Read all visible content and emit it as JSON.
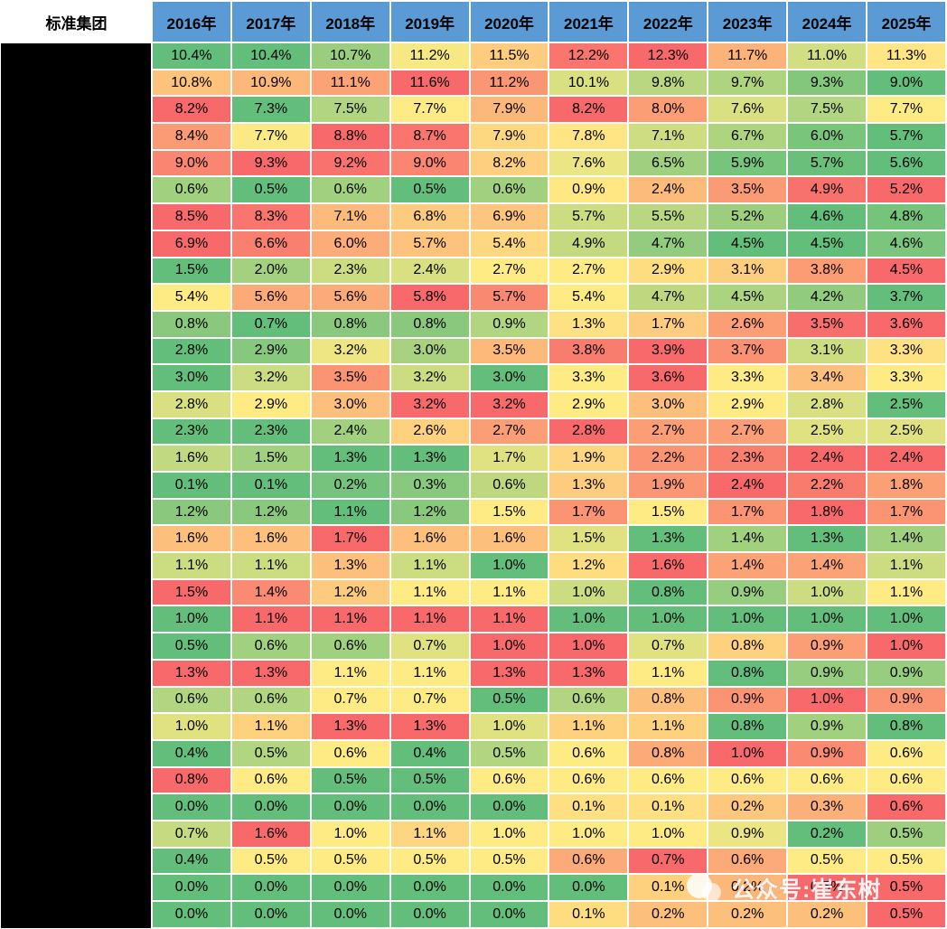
{
  "header": {
    "corner_label": "标准集团"
  },
  "watermark": {
    "text": "公众号:崔东树"
  },
  "colors": {
    "header_bg": "#5B9BD5",
    "header_text": "#000000",
    "grid": "#FFFFFF",
    "redacted_column_bg": "#000000",
    "scale_low_green": "#63BE7B",
    "scale_mid_yellow": "#FFEB84",
    "scale_high_red": "#F8696B"
  },
  "chart_data": {
    "type": "heatmap",
    "title": "标准集团",
    "unit": "%",
    "columns": [
      "2016年",
      "2017年",
      "2018年",
      "2019年",
      "2020年",
      "2021年",
      "2022年",
      "2023年",
      "2024年",
      "2025年"
    ],
    "row_labels_hidden": true,
    "rows": [
      [
        10.4,
        10.4,
        10.7,
        11.2,
        11.5,
        12.2,
        12.3,
        11.7,
        11.0,
        11.3
      ],
      [
        10.8,
        10.9,
        11.1,
        11.6,
        11.2,
        10.1,
        9.8,
        9.7,
        9.3,
        9.0
      ],
      [
        8.2,
        7.3,
        7.5,
        7.7,
        7.9,
        8.2,
        8.0,
        7.6,
        7.5,
        7.7
      ],
      [
        8.4,
        7.7,
        8.8,
        8.7,
        7.9,
        7.8,
        7.1,
        6.7,
        6.0,
        5.7
      ],
      [
        9.0,
        9.3,
        9.2,
        9.0,
        8.2,
        7.6,
        6.5,
        5.9,
        5.7,
        5.6
      ],
      [
        0.6,
        0.5,
        0.6,
        0.5,
        0.6,
        0.9,
        2.4,
        3.5,
        4.9,
        5.2
      ],
      [
        8.5,
        8.3,
        7.1,
        6.8,
        6.9,
        5.7,
        5.5,
        5.2,
        4.6,
        4.8
      ],
      [
        6.9,
        6.6,
        6.0,
        5.7,
        5.4,
        4.9,
        4.7,
        4.5,
        4.5,
        4.6
      ],
      [
        1.5,
        2.0,
        2.3,
        2.4,
        2.7,
        2.7,
        2.9,
        3.1,
        3.8,
        4.5
      ],
      [
        5.4,
        5.6,
        5.6,
        5.8,
        5.7,
        5.4,
        4.7,
        4.5,
        4.2,
        3.7
      ],
      [
        0.8,
        0.7,
        0.8,
        0.8,
        0.9,
        1.3,
        1.7,
        2.6,
        3.5,
        3.6
      ],
      [
        2.8,
        2.9,
        3.2,
        3.0,
        3.5,
        3.8,
        3.9,
        3.7,
        3.1,
        3.3
      ],
      [
        3.0,
        3.2,
        3.5,
        3.2,
        3.0,
        3.3,
        3.6,
        3.3,
        3.4,
        3.3
      ],
      [
        2.8,
        2.9,
        3.0,
        3.2,
        3.2,
        2.9,
        3.0,
        2.9,
        2.8,
        2.5
      ],
      [
        2.3,
        2.3,
        2.4,
        2.6,
        2.7,
        2.8,
        2.7,
        2.7,
        2.5,
        2.5
      ],
      [
        1.6,
        1.5,
        1.3,
        1.3,
        1.7,
        1.9,
        2.2,
        2.3,
        2.4,
        2.4
      ],
      [
        0.1,
        0.1,
        0.2,
        0.3,
        0.6,
        1.3,
        1.9,
        2.4,
        2.2,
        1.8
      ],
      [
        1.2,
        1.2,
        1.1,
        1.2,
        1.5,
        1.7,
        1.5,
        1.7,
        1.8,
        1.7
      ],
      [
        1.6,
        1.6,
        1.7,
        1.6,
        1.6,
        1.5,
        1.3,
        1.4,
        1.3,
        1.4
      ],
      [
        1.1,
        1.1,
        1.3,
        1.1,
        1.0,
        1.2,
        1.6,
        1.4,
        1.4,
        1.1
      ],
      [
        1.5,
        1.4,
        1.2,
        1.1,
        1.1,
        1.0,
        0.8,
        0.9,
        1.0,
        1.1
      ],
      [
        1.0,
        1.1,
        1.1,
        1.1,
        1.1,
        1.0,
        1.0,
        1.0,
        1.0,
        1.0
      ],
      [
        0.5,
        0.6,
        0.6,
        0.7,
        1.0,
        1.0,
        0.7,
        0.8,
        0.9,
        1.0
      ],
      [
        1.3,
        1.3,
        1.1,
        1.1,
        1.3,
        1.3,
        1.1,
        0.8,
        0.9,
        0.9
      ],
      [
        0.6,
        0.6,
        0.7,
        0.7,
        0.5,
        0.6,
        0.8,
        0.9,
        1.0,
        0.9
      ],
      [
        1.0,
        1.1,
        1.3,
        1.3,
        1.0,
        1.1,
        1.1,
        0.8,
        0.9,
        0.8
      ],
      [
        0.4,
        0.5,
        0.6,
        0.4,
        0.5,
        0.6,
        0.8,
        1.0,
        0.9,
        0.6
      ],
      [
        0.8,
        0.6,
        0.5,
        0.5,
        0.6,
        0.6,
        0.6,
        0.6,
        0.6,
        0.6
      ],
      [
        0.0,
        0.0,
        0.0,
        0.0,
        0.0,
        0.1,
        0.1,
        0.2,
        0.3,
        0.6
      ],
      [
        0.7,
        1.6,
        1.0,
        1.1,
        1.0,
        1.0,
        1.0,
        0.9,
        0.2,
        0.5
      ],
      [
        0.4,
        0.5,
        0.5,
        0.5,
        0.5,
        0.6,
        0.7,
        0.6,
        0.5,
        0.5
      ],
      [
        0.0,
        0.0,
        0.0,
        0.0,
        0.0,
        0.0,
        0.1,
        0.2,
        0.5,
        0.5
      ],
      [
        0.0,
        0.0,
        0.0,
        0.0,
        0.0,
        0.1,
        0.2,
        0.2,
        0.2,
        0.5
      ]
    ],
    "color_scale": {
      "low": "#63BE7B",
      "mid": "#FFEB84",
      "high": "#F8696B",
      "midpoint": "per-row median (50th percentile)"
    },
    "legend_position": "none",
    "grid": true
  }
}
